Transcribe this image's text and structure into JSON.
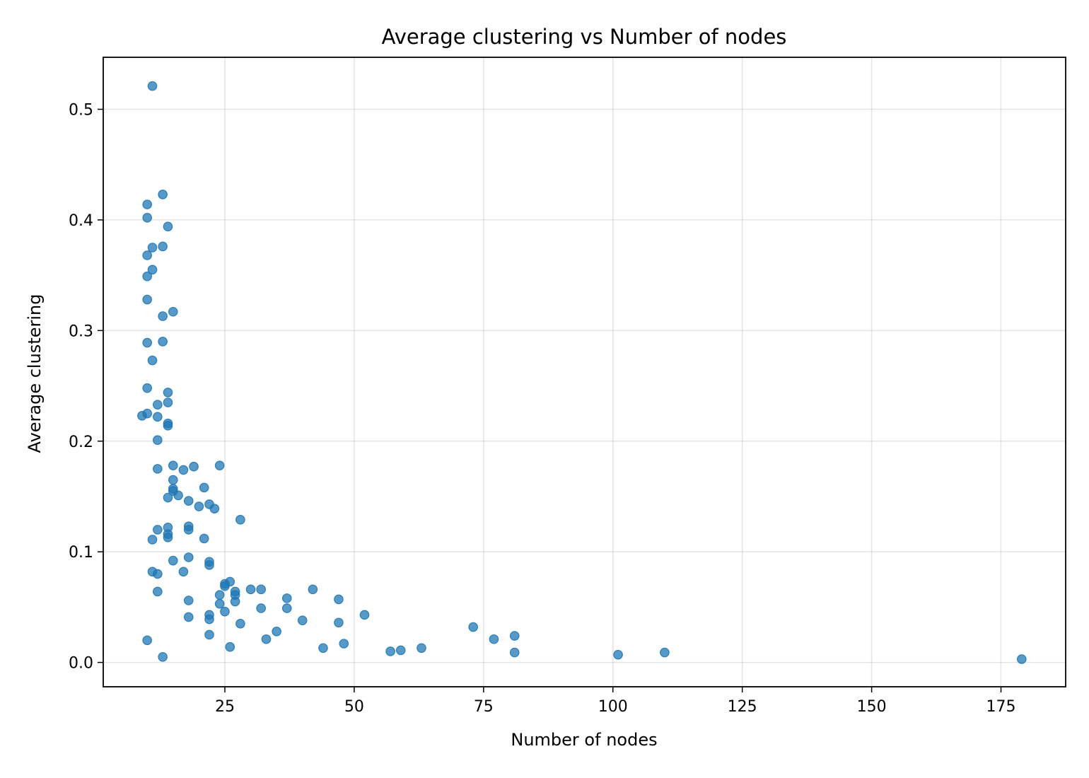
{
  "chart_data": {
    "type": "scatter",
    "title": "Average clustering vs Number of nodes",
    "xlabel": "Number of nodes",
    "ylabel": "Average clustering",
    "xlim": [
      1.5,
      187.5
    ],
    "ylim": [
      -0.022,
      0.547
    ],
    "xticks": [
      25,
      50,
      75,
      100,
      125,
      150,
      175
    ],
    "yticks": [
      0.0,
      0.1,
      0.2,
      0.3,
      0.4,
      0.5
    ],
    "xtick_labels": [
      "25",
      "50",
      "75",
      "100",
      "125",
      "150",
      "175"
    ],
    "ytick_labels": [
      "0.0",
      "0.1",
      "0.2",
      "0.3",
      "0.4",
      "0.5"
    ],
    "grid": true,
    "color": "#1f77b4",
    "points": [
      [
        11,
        0.521
      ],
      [
        13,
        0.423
      ],
      [
        10,
        0.414
      ],
      [
        10,
        0.402
      ],
      [
        14,
        0.394
      ],
      [
        13,
        0.376
      ],
      [
        11,
        0.375
      ],
      [
        10,
        0.368
      ],
      [
        11,
        0.355
      ],
      [
        10,
        0.349
      ],
      [
        10,
        0.328
      ],
      [
        15,
        0.317
      ],
      [
        13,
        0.313
      ],
      [
        13,
        0.29
      ],
      [
        10,
        0.289
      ],
      [
        11,
        0.273
      ],
      [
        10,
        0.248
      ],
      [
        14,
        0.244
      ],
      [
        14,
        0.235
      ],
      [
        12,
        0.233
      ],
      [
        10,
        0.225
      ],
      [
        9,
        0.223
      ],
      [
        12,
        0.222
      ],
      [
        14,
        0.216
      ],
      [
        14,
        0.214
      ],
      [
        12,
        0.201
      ],
      [
        24,
        0.178
      ],
      [
        15,
        0.178
      ],
      [
        19,
        0.177
      ],
      [
        12,
        0.175
      ],
      [
        17,
        0.174
      ],
      [
        15,
        0.165
      ],
      [
        21,
        0.158
      ],
      [
        15,
        0.157
      ],
      [
        15,
        0.155
      ],
      [
        16,
        0.151
      ],
      [
        14,
        0.149
      ],
      [
        18,
        0.146
      ],
      [
        22,
        0.143
      ],
      [
        20,
        0.141
      ],
      [
        23,
        0.139
      ],
      [
        28,
        0.129
      ],
      [
        18,
        0.123
      ],
      [
        14,
        0.122
      ],
      [
        18,
        0.12
      ],
      [
        12,
        0.12
      ],
      [
        14,
        0.116
      ],
      [
        14,
        0.113
      ],
      [
        21,
        0.112
      ],
      [
        11,
        0.111
      ],
      [
        18,
        0.095
      ],
      [
        15,
        0.092
      ],
      [
        22,
        0.091
      ],
      [
        22,
        0.088
      ],
      [
        11,
        0.082
      ],
      [
        17,
        0.082
      ],
      [
        12,
        0.08
      ],
      [
        26,
        0.073
      ],
      [
        25,
        0.071
      ],
      [
        25,
        0.069
      ],
      [
        32,
        0.066
      ],
      [
        42,
        0.066
      ],
      [
        30,
        0.066
      ],
      [
        27,
        0.064
      ],
      [
        12,
        0.064
      ],
      [
        27,
        0.061
      ],
      [
        24,
        0.061
      ],
      [
        37,
        0.058
      ],
      [
        47,
        0.057
      ],
      [
        18,
        0.056
      ],
      [
        27,
        0.055
      ],
      [
        24,
        0.053
      ],
      [
        32,
        0.049
      ],
      [
        37,
        0.049
      ],
      [
        25,
        0.046
      ],
      [
        52,
        0.043
      ],
      [
        22,
        0.043
      ],
      [
        18,
        0.041
      ],
      [
        22,
        0.039
      ],
      [
        40,
        0.038
      ],
      [
        47,
        0.036
      ],
      [
        28,
        0.035
      ],
      [
        73,
        0.032
      ],
      [
        35,
        0.028
      ],
      [
        22,
        0.025
      ],
      [
        81,
        0.024
      ],
      [
        77,
        0.021
      ],
      [
        33,
        0.021
      ],
      [
        10,
        0.02
      ],
      [
        48,
        0.017
      ],
      [
        26,
        0.014
      ],
      [
        44,
        0.013
      ],
      [
        63,
        0.013
      ],
      [
        59,
        0.011
      ],
      [
        57,
        0.01
      ],
      [
        81,
        0.009
      ],
      [
        110,
        0.009
      ],
      [
        101,
        0.007
      ],
      [
        13,
        0.005
      ],
      [
        179,
        0.003
      ]
    ]
  }
}
